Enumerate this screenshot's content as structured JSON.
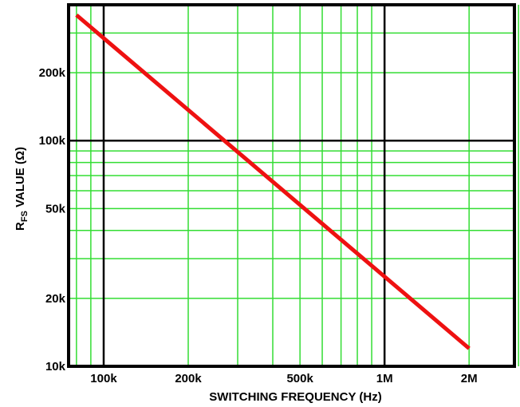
{
  "chart_data": {
    "type": "line",
    "xlabel": "SWITCHING FREQUENCY (Hz)",
    "ylabel": {
      "main": "R",
      "subscript": "FS",
      "rest": " VALUE (Ω)"
    },
    "x_scale": "log",
    "y_scale": "log",
    "xlim": [
      75000,
      2900000
    ],
    "ylim": [
      10000,
      400000
    ],
    "x_ticks": [
      {
        "value": 100000,
        "label": "100k"
      },
      {
        "value": 200000,
        "label": "200k"
      },
      {
        "value": 500000,
        "label": "500k"
      },
      {
        "value": 1000000,
        "label": "1M"
      },
      {
        "value": 2000000,
        "label": "2M"
      }
    ],
    "y_ticks": [
      {
        "value": 10000,
        "label": "10k"
      },
      {
        "value": 20000,
        "label": "20k"
      },
      {
        "value": 50000,
        "label": "50k"
      },
      {
        "value": 100000,
        "label": "100k"
      },
      {
        "value": 200000,
        "label": "200k"
      }
    ],
    "x_minor_grid": [
      80000,
      90000,
      300000,
      400000,
      600000,
      700000,
      800000,
      900000,
      3000000
    ],
    "y_minor_grid": [
      30000,
      40000,
      60000,
      70000,
      80000,
      90000,
      300000
    ],
    "x_major_grid": [
      100000,
      1000000
    ],
    "y_major_grid": [
      100000
    ],
    "grid": true,
    "grid_color": "#33dd33",
    "major_grid_color": "#000000",
    "series": [
      {
        "color": "#ee1111",
        "x": [
          80000,
          2000000
        ],
        "y": [
          360000,
          12000
        ]
      }
    ]
  }
}
